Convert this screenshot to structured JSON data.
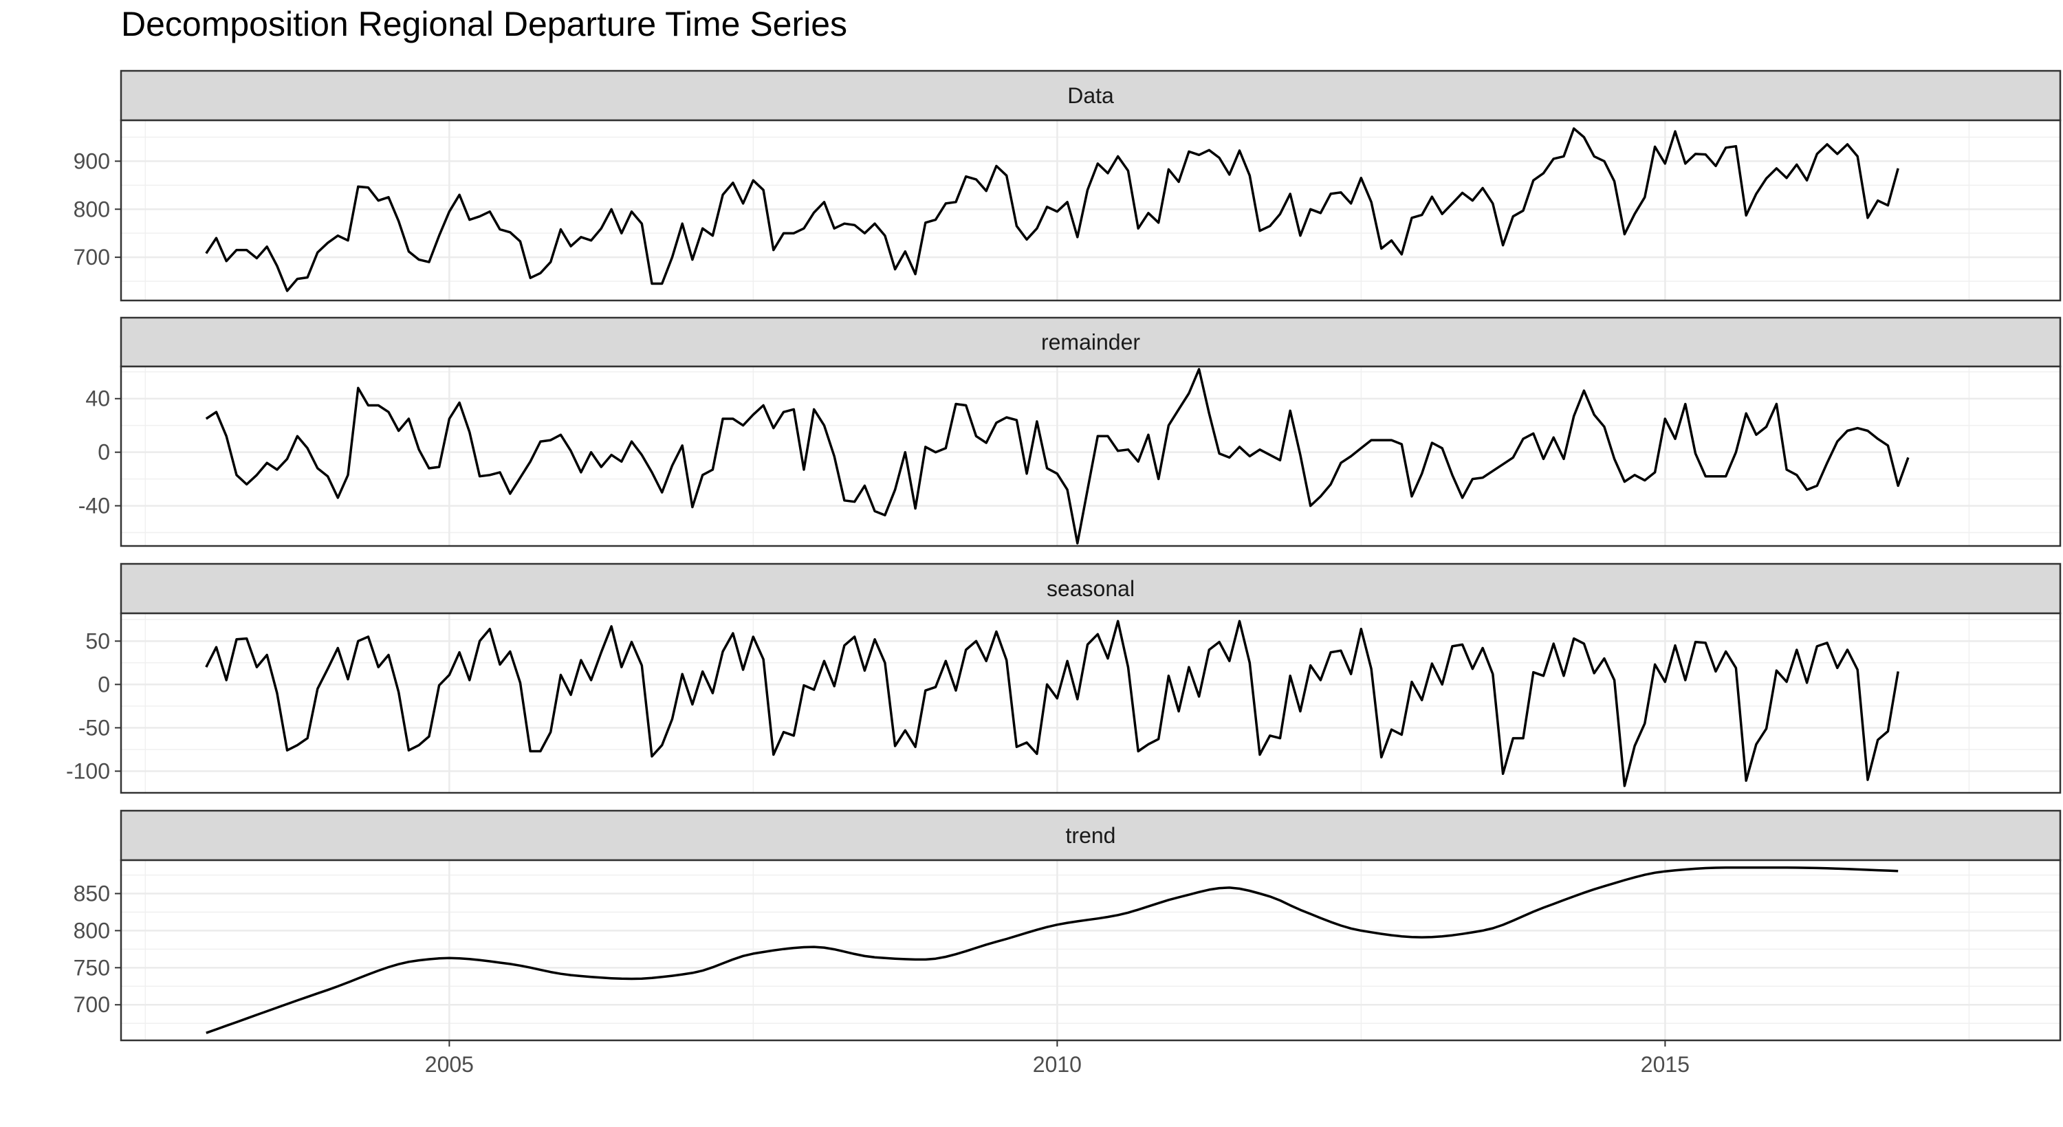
{
  "chart_data": {
    "type": "line",
    "title": "Decomposition Regional Departure Time Series",
    "xlabel": "",
    "ylabel": "",
    "x_ticks": [
      2005,
      2010,
      2015
    ],
    "x_start": 2003.0,
    "x_step": 0.08333,
    "xlim": [
      2002.3,
      2018.25
    ],
    "grid": true,
    "panels": [
      {
        "name": "Data",
        "ylim": [
          610,
          985
        ],
        "y_ticks": [
          700,
          800,
          900
        ],
        "values": [
          708,
          740,
          692,
          715,
          715,
          698,
          722,
          682,
          630,
          655,
          658,
          710,
          730,
          745,
          735,
          847,
          845,
          818,
          825,
          775,
          712,
          695,
          690,
          745,
          795,
          830,
          778,
          785,
          795,
          758,
          752,
          733,
          657,
          667,
          690,
          758,
          723,
          742,
          735,
          760,
          800,
          750,
          795,
          770,
          645,
          645,
          700,
          770,
          695,
          760,
          745,
          830,
          855,
          812,
          860,
          840,
          715,
          750,
          750,
          760,
          793,
          815,
          760,
          770,
          767,
          750,
          770,
          745,
          675,
          712,
          665,
          772,
          778,
          812,
          815,
          868,
          862,
          838,
          890,
          870,
          765,
          737,
          760,
          805,
          795,
          815,
          742,
          840,
          895,
          875,
          910,
          880,
          760,
          792,
          772,
          883,
          857,
          920,
          913,
          923,
          907,
          872,
          922,
          870,
          755,
          765,
          790,
          832,
          745,
          800,
          792,
          832,
          835,
          812,
          865,
          815,
          718,
          735,
          706,
          782,
          788,
          826,
          790,
          812,
          834,
          818,
          844,
          812,
          725,
          785,
          797,
          860,
          875,
          905,
          910,
          968,
          950,
          910,
          900,
          858,
          748,
          790,
          825,
          930,
          895,
          962,
          895,
          915,
          914,
          890,
          928,
          931,
          787,
          832,
          864,
          885,
          865,
          893,
          860,
          915,
          935,
          915,
          935,
          910,
          782,
          818,
          808,
          885
        ]
      },
      {
        "name": "remainder",
        "ylim": [
          -70,
          64
        ],
        "y_ticks": [
          -40,
          0,
          40
        ],
        "values": [
          25,
          30,
          12,
          -17,
          -24,
          -17,
          -8,
          -13,
          -5,
          12,
          3,
          -12,
          -18,
          -34,
          -17,
          48,
          35,
          35,
          30,
          16,
          25,
          2,
          -12,
          -11,
          25,
          37,
          15,
          -18,
          -17,
          -15,
          -31,
          -19,
          -7,
          8,
          9,
          13,
          1,
          -15,
          0,
          -11,
          -2,
          -7,
          8,
          -2,
          -15,
          -30,
          -10,
          5,
          -41,
          -17,
          -13,
          25,
          25,
          20,
          28,
          35,
          18,
          30,
          32,
          -13,
          32,
          20,
          -3,
          -36,
          -37,
          -25,
          -44,
          -47,
          -28,
          0,
          -42,
          4,
          0,
          3,
          36,
          35,
          12,
          7,
          22,
          26,
          24,
          -16,
          23,
          -12,
          -16,
          -28,
          -68,
          -28,
          12,
          12,
          1,
          2,
          -7,
          13,
          -20,
          20,
          32,
          44,
          62,
          29,
          -1,
          -4,
          4,
          -3,
          2,
          -2,
          -6,
          31,
          -2,
          -40,
          -33,
          -24,
          -8,
          -3,
          3,
          9,
          9,
          9,
          6,
          -33,
          -16,
          7,
          3,
          -17,
          -34,
          -20,
          -19,
          -14,
          -9,
          -4,
          10,
          14,
          -5,
          11,
          -5,
          27,
          46,
          28,
          19,
          -5,
          -22,
          -17,
          -21,
          -15,
          25,
          10,
          36,
          -1,
          -18,
          -18,
          -18,
          0,
          29,
          13,
          19,
          36,
          -13,
          -17,
          -28,
          -25,
          -8,
          8,
          16,
          18,
          16,
          10,
          5,
          -25,
          -4
        ]
      },
      {
        "name": "seasonal",
        "ylim": [
          -125,
          82
        ],
        "y_ticks": [
          -100,
          -50,
          0,
          50
        ],
        "values": [
          20,
          43,
          5,
          52,
          53,
          20,
          34,
          -10,
          -76,
          -70,
          -62,
          -5,
          18,
          42,
          6,
          50,
          55,
          20,
          34,
          -9,
          -76,
          -70,
          -60,
          -1,
          11,
          37,
          5,
          50,
          64,
          23,
          38,
          2,
          -77,
          -77,
          -55,
          11,
          -12,
          28,
          5,
          37,
          67,
          20,
          49,
          22,
          -83,
          -70,
          -40,
          12,
          -23,
          15,
          -10,
          38,
          59,
          17,
          55,
          29,
          -81,
          -55,
          -59,
          -1,
          -6,
          27,
          -2,
          45,
          55,
          16,
          52,
          25,
          -71,
          -53,
          -72,
          -7,
          -3,
          27,
          -7,
          40,
          50,
          27,
          61,
          28,
          -72,
          -67,
          -80,
          0,
          -16,
          27,
          -17,
          46,
          58,
          30,
          73,
          20,
          -77,
          -69,
          -63,
          10,
          -31,
          20,
          -14,
          40,
          49,
          27,
          73,
          25,
          -81,
          -59,
          -62,
          10,
          -31,
          22,
          5,
          37,
          39,
          12,
          64,
          18,
          -84,
          -52,
          -58,
          3,
          -18,
          24,
          0,
          44,
          46,
          18,
          42,
          12,
          -103,
          -62,
          -62,
          14,
          10,
          47,
          10,
          53,
          47,
          13,
          30,
          5,
          -117,
          -71,
          -45,
          23,
          3,
          45,
          5,
          49,
          48,
          15,
          38,
          19,
          -111,
          -69,
          -51,
          16,
          3,
          40,
          2,
          44,
          48,
          19,
          40,
          17,
          -110,
          -64,
          -54,
          15
        ]
      },
      {
        "name": "trend",
        "ylim": [
          652,
          895
        ],
        "y_ticks": [
          700,
          750,
          800,
          850
        ],
        "type": "line"
      }
    ],
    "trend_knots": {
      "x": [
        2003.0,
        2004.0,
        2004.75,
        2005.0,
        2005.5,
        2006.0,
        2006.5,
        2007.0,
        2007.5,
        2008.0,
        2008.5,
        2008.9,
        2009.5,
        2010.0,
        2010.5,
        2011.0,
        2011.4,
        2011.75,
        2012.0,
        2012.5,
        2013.0,
        2013.5,
        2014.0,
        2014.5,
        2015.0,
        2015.5,
        2016.0,
        2017.0
      ],
      "y": [
        662,
        720,
        760,
        763,
        755,
        740,
        735,
        743,
        769,
        778,
        764,
        761,
        785,
        808,
        821,
        845,
        858,
        846,
        828,
        800,
        791,
        800,
        831,
        860,
        880,
        885,
        885,
        880
      ]
    }
  }
}
